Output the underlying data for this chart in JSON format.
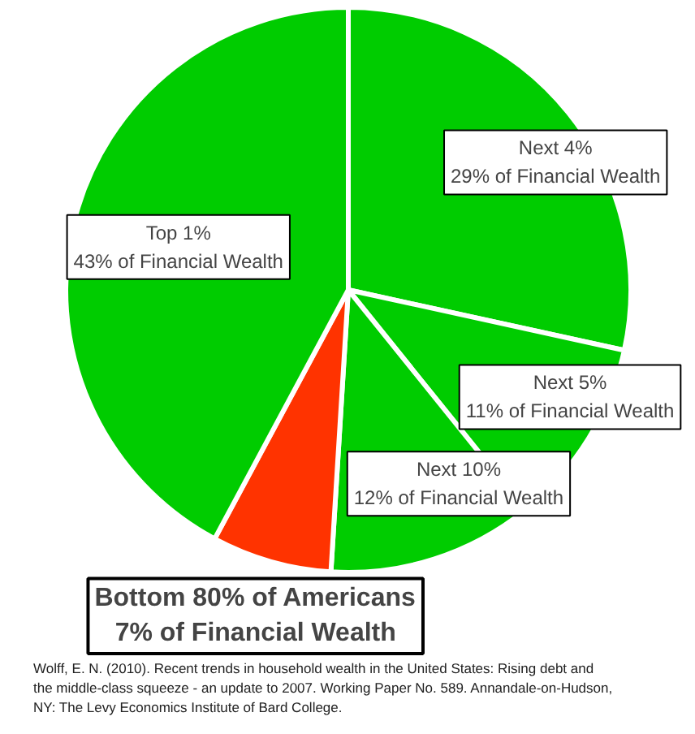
{
  "chart_data": {
    "type": "pie",
    "categories": [
      "Next 4%",
      "Next 5%",
      "Next 10%",
      "Bottom 80% of Americans",
      "Top 1%"
    ],
    "values": [
      29,
      11,
      12,
      7,
      43
    ],
    "colors": [
      "#00cc00",
      "#00cc00",
      "#00cc00",
      "#ff3300",
      "#00cc00"
    ],
    "value_labels": [
      "29% of Financial Wealth",
      "11% of Financial Wealth",
      "12% of Financial Wealth",
      "7% of Financial Wealth",
      "43% of Financial Wealth"
    ],
    "annotations": [
      "Wolff, E. N. (2010). Recent trends in household wealth in the United States: Rising debt and the middle-class squeeze - an update to 2007. Working Paper No. 589. Annandale-on-Hudson, NY: The Levy Economics Institute of Bard College."
    ]
  }
}
